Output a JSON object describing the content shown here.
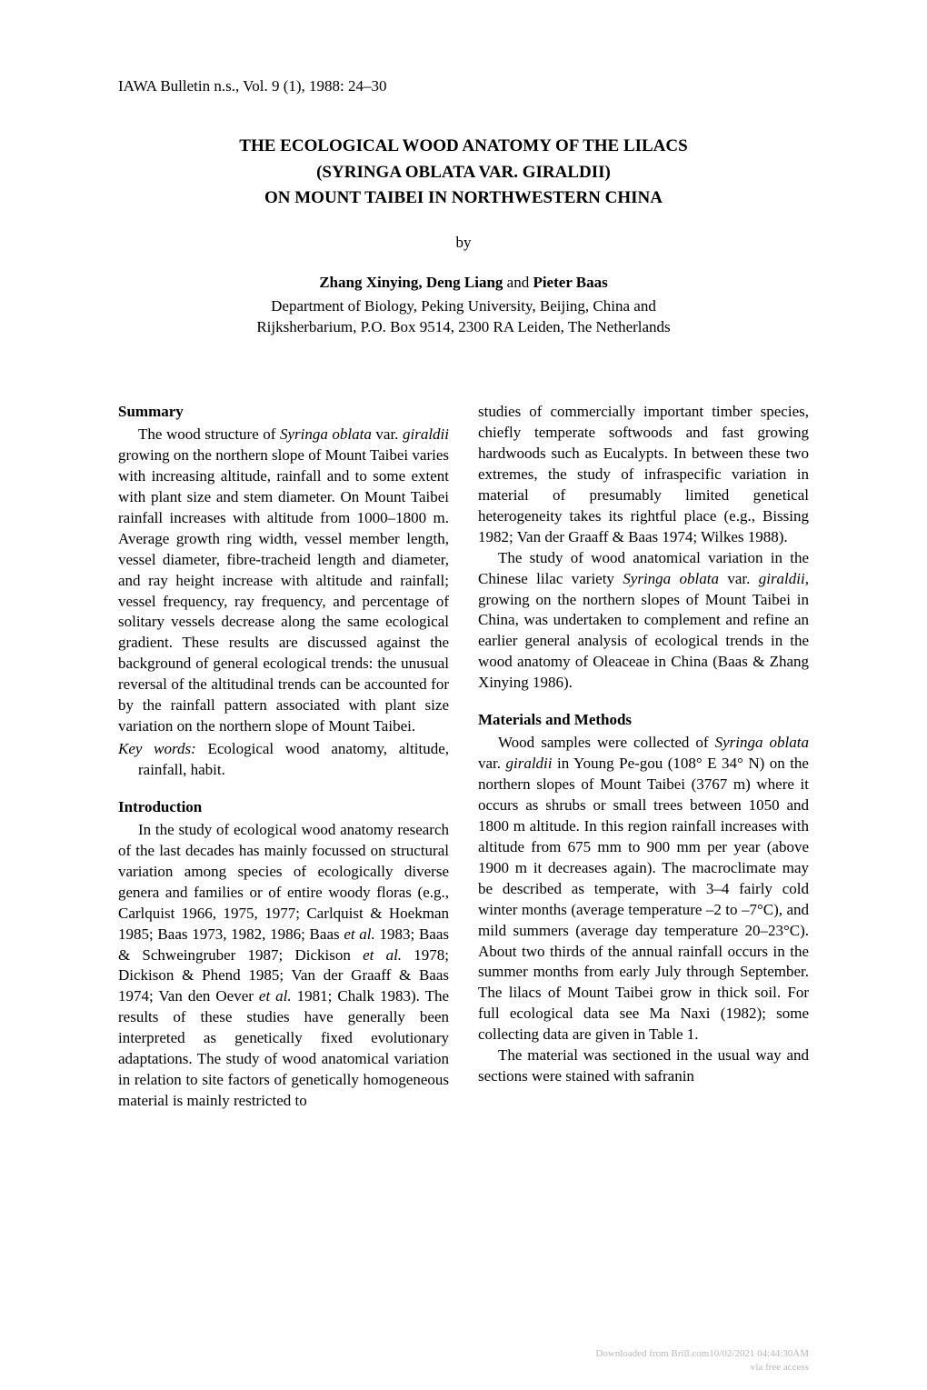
{
  "journal": "IAWA Bulletin n.s., Vol. 9 (1), 1988: 24–30",
  "title": {
    "line1": "THE ECOLOGICAL WOOD ANATOMY OF THE LILACS",
    "line2": "(SYRINGA OBLATA VAR. GIRALDII)",
    "line3": "ON MOUNT TAIBEI IN NORTHWESTERN CHINA"
  },
  "by": "by",
  "authors": {
    "a1": "Zhang Xinying,",
    "a2": "Deng Liang",
    "and": " and ",
    "a3": "Pieter Baas"
  },
  "affiliation": {
    "line1": "Department of Biology, Peking University, Beijing, China and",
    "line2": "Rijksherbarium, P.O. Box 9514, 2300 RA Leiden, The Netherlands"
  },
  "left": {
    "summary_h": "Summary",
    "summary_p1a": "The wood structure of ",
    "summary_p1_ital1": "Syringa oblata",
    "summary_p1b": " var. ",
    "summary_p1_ital2": "giraldii",
    "summary_p1c": " growing on the northern slope of Mount Taibei varies with increasing altitude, rainfall and to some extent with plant size and stem diameter. On Mount Taibei rainfall increases with altitude from 1000–1800 m. Average growth ring width, vessel member length, vessel diameter, fibre-tracheid length and diameter, and ray height increase with altitude and rainfall; vessel frequency, ray frequency, and percentage of solitary vessels decrease along the same ecological gradient. These results are discussed against the background of general ecological trends: the unusual reversal of the altitudinal trends can be accounted for by the rainfall pattern associated with plant size variation on the northern slope of Mount Taibei.",
    "keywords_label": "Key words:",
    "keywords_text": " Ecological wood anatomy, altitude, rainfall, habit.",
    "intro_h": "Introduction",
    "intro_p1a": "In the study of ecological wood anatomy research of the last decades has mainly focussed on structural variation among species of ecologically diverse genera and families or of entire woody floras (e.g., Carlquist 1966, 1975, 1977; Carlquist & Hoekman 1985; Baas 1973, 1982, 1986; Baas ",
    "intro_p1_ital1": "et al.",
    "intro_p1b": " 1983; Baas & Schweingruber 1987; Dickison ",
    "intro_p1_ital2": "et al.",
    "intro_p1c": " 1978; Dickison & Phend 1985; Van der Graaff & Baas 1974; Van den Oever ",
    "intro_p1_ital3": "et al.",
    "intro_p1d": " 1981; Chalk 1983). The results of these studies have generally been interpreted as genetically fixed evolutionary adaptations. The study of wood anatomical variation in relation to site factors of genetically homogeneous material is mainly restricted to"
  },
  "right": {
    "cont_p1": "studies of commercially important timber species, chiefly temperate softwoods and fast growing hardwoods such as Eucalypts. In between these two extremes, the study of infraspecific variation in material of presumably limited genetical heterogeneity takes its rightful place (e.g., Bissing 1982; Van der Graaff & Baas 1974; Wilkes 1988).",
    "cont_p2a": "The study of wood anatomical variation in the Chinese lilac variety ",
    "cont_p2_ital1": "Syringa oblata",
    "cont_p2b": " var. ",
    "cont_p2_ital2": "giraldii,",
    "cont_p2c": " growing on the northern slopes of Mount Taibei in China, was undertaken to complement and refine an earlier general analysis of ecological trends in the wood anatomy of Oleaceae in China (Baas & Zhang Xinying 1986).",
    "mm_h": "Materials and Methods",
    "mm_p1a": "Wood samples were collected of ",
    "mm_p1_ital1": "Syringa oblata",
    "mm_p1b": " var. ",
    "mm_p1_ital2": "giraldii",
    "mm_p1c": " in Young Pe-gou (108° E 34° N) on the northern slopes of Mount Taibei (3767 m) where it occurs as shrubs or small trees between 1050 and 1800 m altitude. In this region rainfall increases with altitude from 675 mm to 900 mm per year (above 1900 m it decreases again). The macroclimate may be described as temperate, with 3–4 fairly cold winter months (average temperature –2 to –7°C), and mild summers (average day temperature 20–23°C). About two thirds of the annual rainfall occurs in the summer months from early July through September. The lilacs of Mount Taibei grow in thick soil. For full ecological data see Ma Naxi (1982); some collecting data are given in Table 1.",
    "mm_p2": "The material was sectioned in the usual way and sections were stained with safranin"
  },
  "footer": {
    "line1": "Downloaded from Brill.com10/02/2021 04:44:30AM",
    "line2": "via free access"
  }
}
